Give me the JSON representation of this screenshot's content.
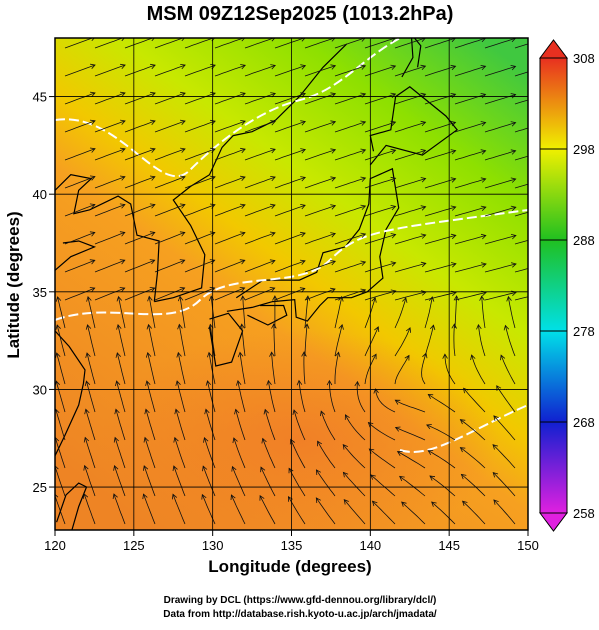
{
  "title": "MSM 09Z12Sep2025 (1013.2hPa)",
  "x_axis": {
    "label": "Longitude (degrees)",
    "lim": [
      120,
      150
    ],
    "ticks": [
      120,
      125,
      130,
      135,
      140,
      145,
      150
    ]
  },
  "y_axis": {
    "label": "Latitude  (degrees)",
    "lim": [
      22.8,
      48
    ],
    "ticks": [
      25,
      30,
      35,
      40,
      45
    ]
  },
  "colorbar": {
    "lim": [
      258,
      308
    ],
    "ticks": [
      258,
      268,
      278,
      288,
      298,
      308
    ]
  },
  "credits": [
    "Drawing by DCL (https://www.gfd-dennou.org/library/dcl/)",
    "Data from http://database.rish.kyoto-u.ac.jp/arch/jmadata/"
  ]
}
